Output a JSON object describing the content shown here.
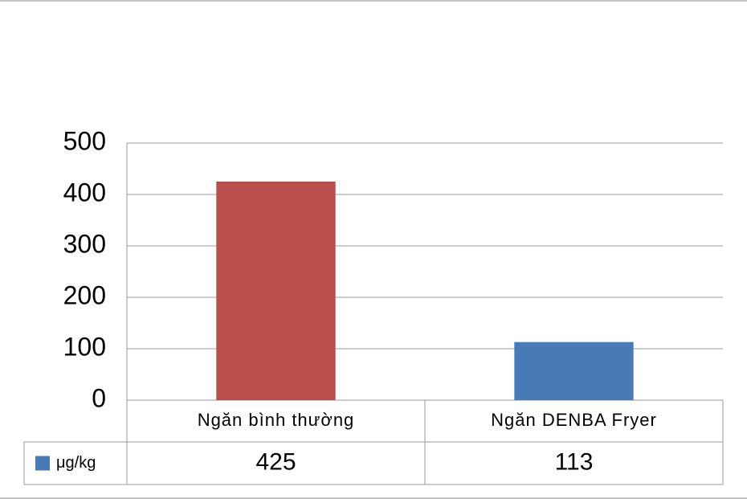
{
  "chart_data": {
    "type": "bar",
    "categories": [
      "Ngăn bình thường",
      "Ngăn DENBA Fryer"
    ],
    "series": [
      {
        "name": "μg/kg",
        "color": "#4a7ab5",
        "point_colors": [
          "#b94f4b",
          "#4a7ab5"
        ],
        "values": [
          425,
          113
        ]
      }
    ],
    "ylim": [
      0,
      500
    ],
    "yticks": [
      0,
      100,
      200,
      300,
      400,
      500
    ],
    "grid": true
  }
}
